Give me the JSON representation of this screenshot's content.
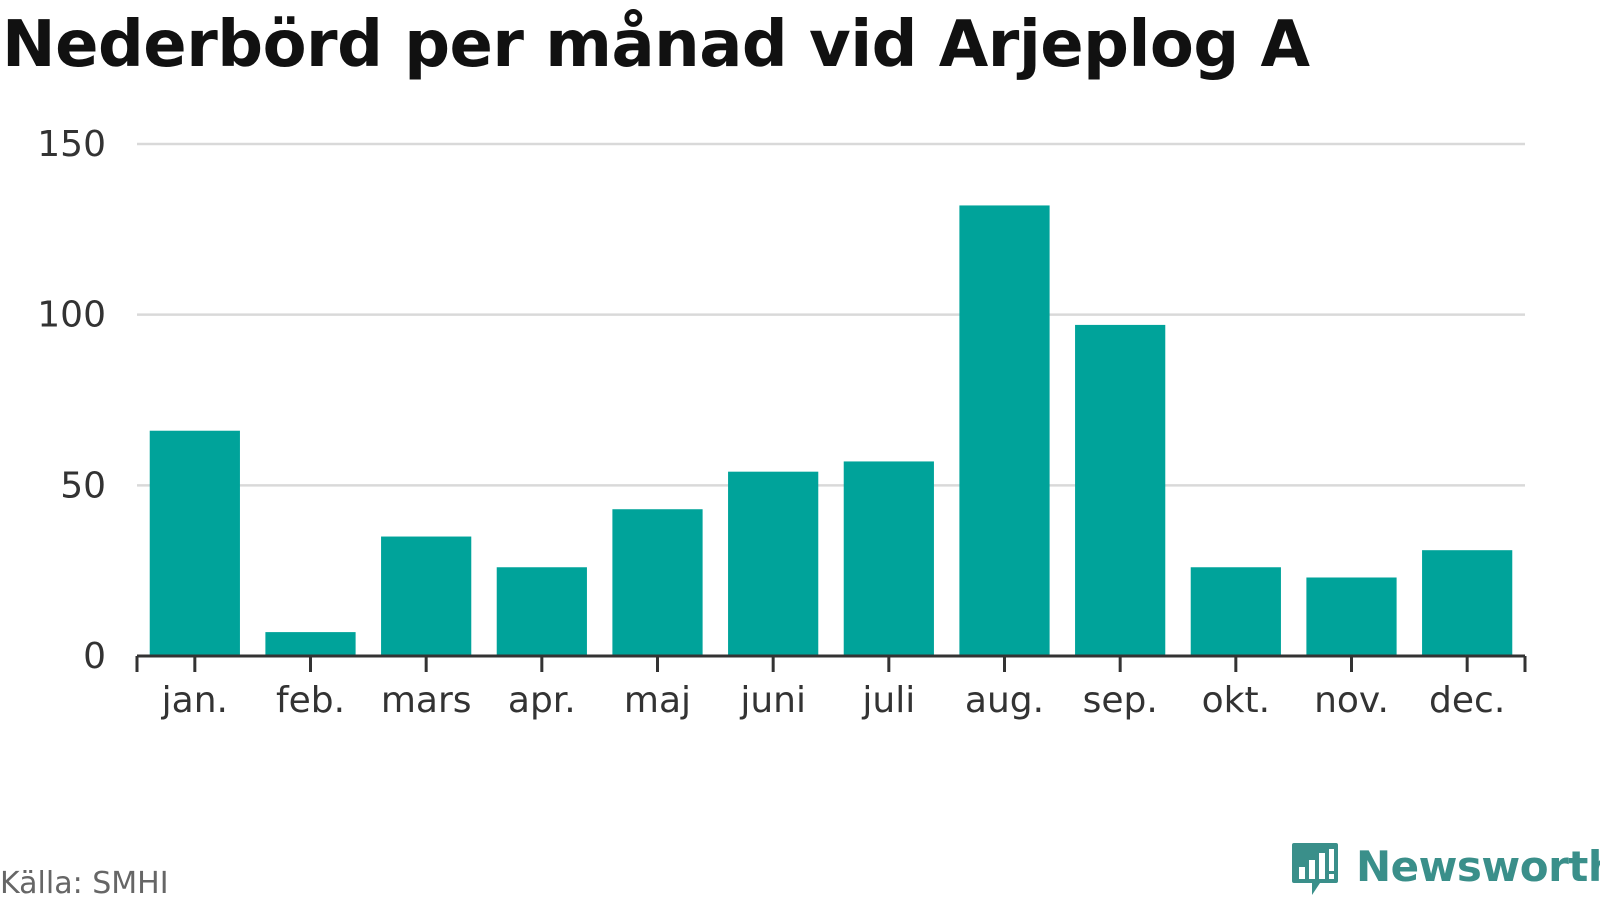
{
  "header": {
    "title": "Nederbörd per månad vid Arjeplog A"
  },
  "footer": {
    "source": "Källa: SMHI",
    "brand": "Newsworthy",
    "brand_icon": "bar-chart-speech-bubble-icon"
  },
  "colors": {
    "bar": "#00a39a",
    "grid": "#d9d9d9",
    "axis": "#333333",
    "brand": "#3a8f8a"
  },
  "chart_data": {
    "type": "bar",
    "title": "Nederbörd per månad vid Arjeplog A",
    "xlabel": "",
    "ylabel": "",
    "categories": [
      "jan.",
      "feb.",
      "mars",
      "apr.",
      "maj",
      "juni",
      "juli",
      "aug.",
      "sep.",
      "okt.",
      "nov.",
      "dec."
    ],
    "values": [
      66,
      7,
      35,
      26,
      43,
      54,
      57,
      132,
      97,
      26,
      23,
      31
    ],
    "ylim": [
      0,
      150
    ],
    "yticks": [
      0,
      50,
      100,
      150
    ],
    "grid": true,
    "legend": "none"
  }
}
